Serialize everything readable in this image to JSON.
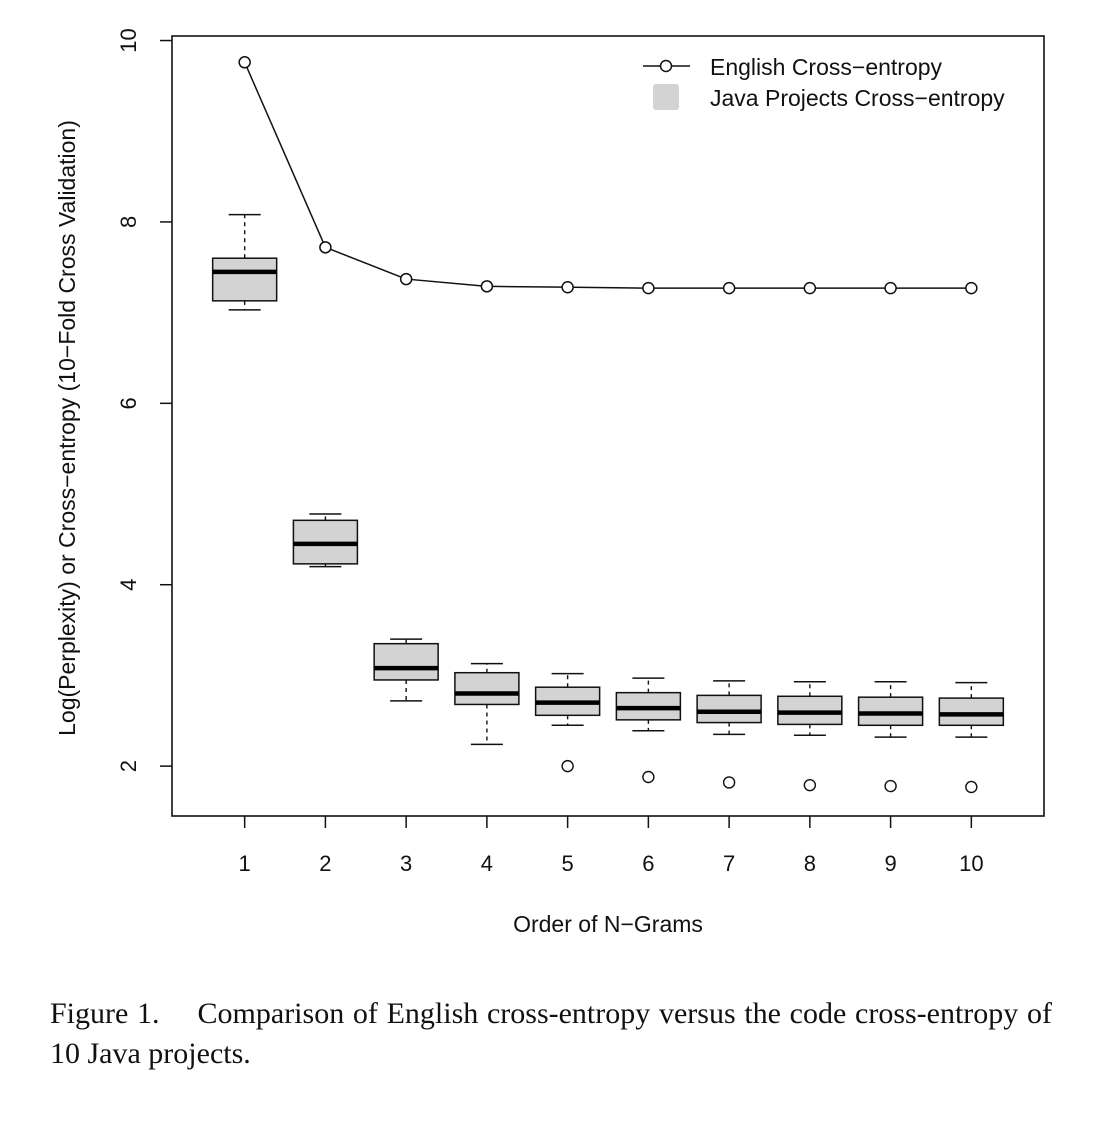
{
  "chart_data": {
    "type": "box_and_line",
    "xlabel": "Order of N−Grams",
    "ylabel": "Log(Perplexity) or Cross−entropy (10−Fold Cross Validation)",
    "categories": [
      "1",
      "2",
      "3",
      "4",
      "5",
      "6",
      "7",
      "8",
      "9",
      "10"
    ],
    "x": [
      1,
      2,
      3,
      4,
      5,
      6,
      7,
      8,
      9,
      10
    ],
    "xlim": [
      0.1,
      10.9
    ],
    "ylim": [
      1.45,
      10.05
    ],
    "yticks": [
      "2",
      "4",
      "6",
      "8",
      "10"
    ],
    "legend_position": "top-right",
    "series": [
      {
        "name": "English Cross−entropy",
        "kind": "line",
        "values": [
          9.76,
          7.72,
          7.37,
          7.29,
          7.28,
          7.27,
          7.27,
          7.27,
          7.27,
          7.27
        ]
      },
      {
        "name": "Java Projects Cross−entropy",
        "kind": "box",
        "color": "#d3d3d3",
        "boxes": [
          {
            "x": 1,
            "low": 7.03,
            "q1": 7.13,
            "median": 7.45,
            "q3": 7.6,
            "high": 8.08,
            "outliers": []
          },
          {
            "x": 2,
            "low": 4.2,
            "q1": 4.23,
            "median": 4.45,
            "q3": 4.71,
            "high": 4.78,
            "outliers": []
          },
          {
            "x": 3,
            "low": 2.72,
            "q1": 2.95,
            "median": 3.08,
            "q3": 3.35,
            "high": 3.4,
            "outliers": []
          },
          {
            "x": 4,
            "low": 2.24,
            "q1": 2.68,
            "median": 2.8,
            "q3": 3.03,
            "high": 3.13,
            "outliers": []
          },
          {
            "x": 5,
            "low": 2.45,
            "q1": 2.56,
            "median": 2.7,
            "q3": 2.87,
            "high": 3.02,
            "outliers": [
              2.0
            ]
          },
          {
            "x": 6,
            "low": 2.39,
            "q1": 2.51,
            "median": 2.64,
            "q3": 2.81,
            "high": 2.97,
            "outliers": [
              1.88
            ]
          },
          {
            "x": 7,
            "low": 2.35,
            "q1": 2.48,
            "median": 2.6,
            "q3": 2.78,
            "high": 2.94,
            "outliers": [
              1.82
            ]
          },
          {
            "x": 8,
            "low": 2.34,
            "q1": 2.46,
            "median": 2.59,
            "q3": 2.77,
            "high": 2.93,
            "outliers": [
              1.79
            ]
          },
          {
            "x": 9,
            "low": 2.32,
            "q1": 2.45,
            "median": 2.58,
            "q3": 2.76,
            "high": 2.93,
            "outliers": [
              1.78
            ]
          },
          {
            "x": 10,
            "low": 2.32,
            "q1": 2.45,
            "median": 2.57,
            "q3": 2.75,
            "high": 2.92,
            "outliers": [
              1.77
            ]
          }
        ]
      }
    ]
  },
  "caption": {
    "label": "Figure 1.",
    "text": "Comparison of English cross-entropy versus the code cross-entropy of 10 Java projects."
  }
}
